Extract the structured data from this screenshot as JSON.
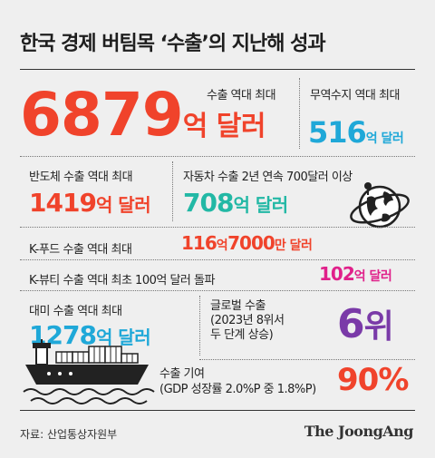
{
  "title": "한국 경제 버팀목 ‘수출’의 지난해 성과",
  "colors": {
    "red": "#f0432b",
    "cyan": "#1fa8d8",
    "teal": "#22b8a5",
    "pink": "#e0208a",
    "purple": "#7a3aa8",
    "text": "#222222"
  },
  "sections": {
    "export_total": {
      "label": "수출 역대 최대",
      "value": "6879",
      "unit": "억 달러"
    },
    "trade_surplus": {
      "label": "무역수지 역대 최대",
      "value": "516",
      "unit": "억 달러"
    },
    "semiconductor": {
      "label": "반도체 수출 역대 최대",
      "value": "1419",
      "unit": "억 달러"
    },
    "automobile": {
      "label": "자동차 수출 2년 연속 700달러 이상",
      "value": "708",
      "unit": "억 달러"
    },
    "k_food": {
      "label": "K-푸드 수출 역대 최대",
      "value1": "116",
      "unit1": "억",
      "value2": "7000",
      "unit2": "만 달러"
    },
    "k_beauty": {
      "label": "K-뷰티 수출 역대 최초 100억 달러 돌파",
      "value": "102",
      "unit": "억 달러"
    },
    "us_export": {
      "label": "대미 수출 역대 최대",
      "value": "1278",
      "unit": "억 달러"
    },
    "global_rank": {
      "label_line1": "글로벌 수출",
      "label_line2": "(2023년 8위서",
      "label_line3": "두 단계 상승)",
      "value": "6",
      "unit": "위"
    },
    "contribution": {
      "label_line1": "수출 기여",
      "label_line2": "(GDP 성장률 2.0%P 중 1.8%P)",
      "value": "90%"
    }
  },
  "icons": [
    "globe-icon",
    "cargo-ship-icon"
  ],
  "footer": {
    "source": "자료: 산업통상자원부",
    "logo": "The JoongAng"
  }
}
